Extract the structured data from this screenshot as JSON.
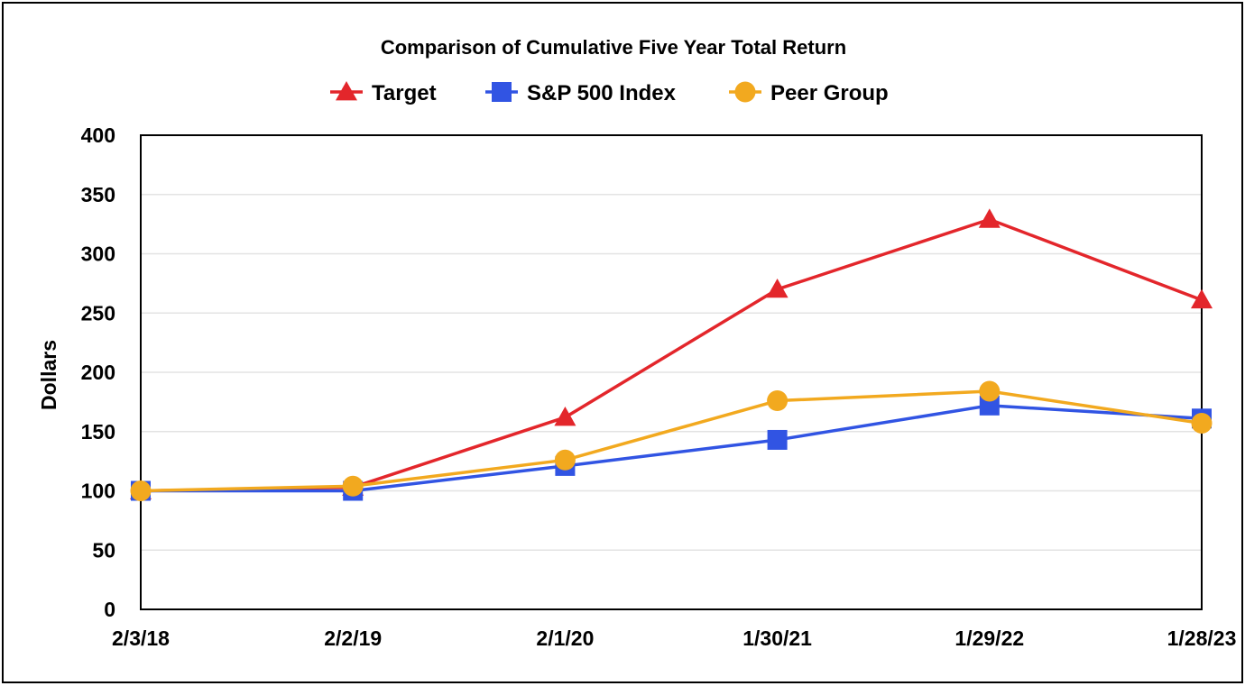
{
  "chart_data": {
    "type": "line",
    "title": "Comparison of Cumulative Five Year Total Return",
    "xlabel": "",
    "ylabel": "Dollars",
    "categories": [
      "2/3/18",
      "2/2/19",
      "2/1/20",
      "1/30/21",
      "1/29/22",
      "1/28/23"
    ],
    "yticks": [
      0,
      50,
      100,
      150,
      200,
      250,
      300,
      350,
      400
    ],
    "ylim": [
      0,
      400
    ],
    "grid": true,
    "legend_position": "top",
    "series": [
      {
        "name": "Target",
        "values": [
          100,
          103,
          162,
          270,
          329,
          261
        ],
        "color": "#e3262b",
        "marker": "triangle"
      },
      {
        "name": "S&P 500 Index",
        "values": [
          100,
          100,
          121,
          143,
          172,
          161
        ],
        "color": "#3154e3",
        "marker": "square"
      },
      {
        "name": "Peer Group",
        "values": [
          100,
          104,
          126,
          176,
          184,
          157
        ],
        "color": "#f2a91f",
        "marker": "circle"
      }
    ]
  }
}
